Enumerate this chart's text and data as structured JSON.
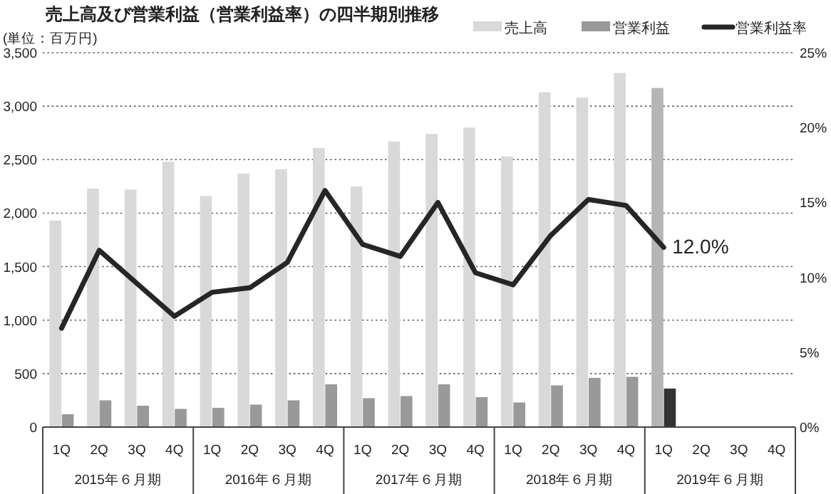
{
  "chart_data": {
    "type": "bar",
    "title": "売上高及び営業利益（営業利益率）の四半期別推移",
    "annotations": [
      "(単位：百万円)",
      "2015年６月期",
      "2016年６月期",
      "2017年６月期",
      "2018年６月期",
      "2019年６月期"
    ],
    "categories": [
      "1Q",
      "2Q",
      "3Q",
      "4Q",
      "1Q",
      "2Q",
      "3Q",
      "4Q",
      "1Q",
      "2Q",
      "3Q",
      "4Q",
      "1Q",
      "2Q",
      "3Q",
      "4Q",
      "1Q",
      "2Q",
      "3Q",
      "4Q"
    ],
    "series": [
      {
        "name": "売上高",
        "color": "#d9d9d9",
        "colors": [
          "#d9d9d9",
          "#d9d9d9",
          "#d9d9d9",
          "#d9d9d9",
          "#d9d9d9",
          "#d9d9d9",
          "#d9d9d9",
          "#d9d9d9",
          "#d9d9d9",
          "#d9d9d9",
          "#d9d9d9",
          "#d9d9d9",
          "#d9d9d9",
          "#d9d9d9",
          "#d9d9d9",
          "#d9d9d9",
          "#b5b5b5",
          "#d9d9d9",
          "#d9d9d9",
          "#d9d9d9"
        ],
        "values": [
          1930,
          2230,
          2220,
          2480,
          2160,
          2370,
          2410,
          2610,
          2250,
          2670,
          2740,
          2800,
          2530,
          3130,
          3080,
          3310,
          3170,
          null,
          null,
          null
        ]
      },
      {
        "name": "営業利益",
        "color": "#999999",
        "colors": [
          "#999999",
          "#999999",
          "#999999",
          "#999999",
          "#999999",
          "#999999",
          "#999999",
          "#999999",
          "#999999",
          "#999999",
          "#999999",
          "#999999",
          "#999999",
          "#999999",
          "#999999",
          "#999999",
          "#333333",
          "#999999",
          "#999999",
          "#999999"
        ],
        "values": [
          120,
          250,
          200,
          170,
          180,
          210,
          250,
          400,
          270,
          290,
          400,
          280,
          230,
          390,
          460,
          470,
          360,
          null,
          null,
          null
        ]
      },
      {
        "name": "営業利益率",
        "type": "line",
        "axis": "y2",
        "color": "#262626",
        "values": [
          6.6,
          11.8,
          9.6,
          7.4,
          9.0,
          9.3,
          11.0,
          15.8,
          12.2,
          11.4,
          15.0,
          10.3,
          9.5,
          12.8,
          15.2,
          14.8,
          12.0,
          null,
          null,
          null
        ],
        "value_labels": [
          null,
          null,
          null,
          null,
          null,
          null,
          null,
          null,
          null,
          null,
          null,
          null,
          null,
          null,
          null,
          null,
          "12.0%",
          null,
          null,
          null
        ]
      }
    ],
    "ylim": [
      0,
      3500
    ],
    "yticks": [
      {
        "value": 0,
        "label": "0"
      },
      {
        "value": 500,
        "label": "500"
      },
      {
        "value": 1000,
        "label": "1,000"
      },
      {
        "value": 1500,
        "label": "1,500"
      },
      {
        "value": 2000,
        "label": "2,000"
      },
      {
        "value": 2500,
        "label": "2,500"
      },
      {
        "value": 3000,
        "label": "3,000"
      },
      {
        "value": 3500,
        "label": "3,500"
      }
    ],
    "y2lim": [
      0,
      25
    ],
    "y2ticks": [
      {
        "value": 0,
        "label": "0%"
      },
      {
        "value": 5,
        "label": "5%"
      },
      {
        "value": 10,
        "label": "10%"
      },
      {
        "value": 15,
        "label": "15%"
      },
      {
        "value": 20,
        "label": "20%"
      },
      {
        "value": 25,
        "label": "25%"
      }
    ],
    "grid": "y",
    "legend": "top right",
    "marker": "none",
    "line_style": "solid"
  }
}
